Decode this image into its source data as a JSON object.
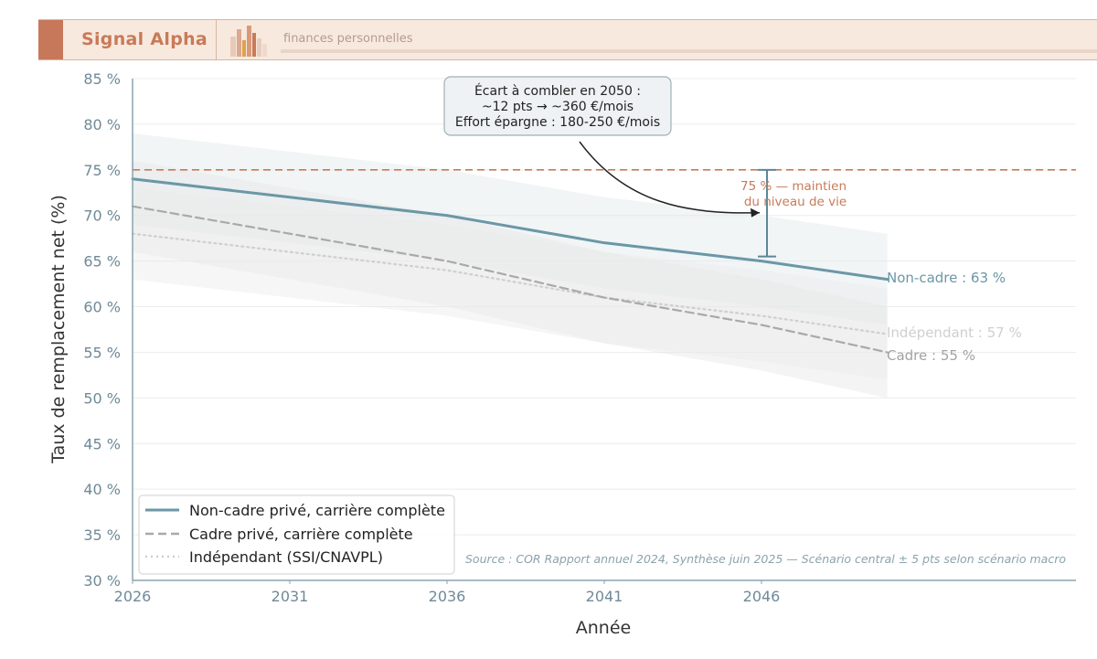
{
  "header": {
    "brand": "Signal Alpha",
    "tagline": "finances personnelles"
  },
  "colors": {
    "noncadre": "#6b97a6",
    "cadre": "#a9a9a9",
    "independant": "#cfcfcf",
    "target": "#c97a57",
    "header_bg": "#f8e9df"
  },
  "chart_data": {
    "type": "line",
    "xlabel": "Année",
    "ylabel": "Taux de remplacement net (%)",
    "xlim": [
      2026,
      2056
    ],
    "ylim": [
      30,
      85
    ],
    "x_ticks": [
      2026,
      2031,
      2036,
      2041,
      2046
    ],
    "x_tick_labels": [
      "2026",
      "2031",
      "2036",
      "2041",
      "2046"
    ],
    "y_ticks": [
      30,
      35,
      40,
      45,
      50,
      55,
      60,
      65,
      70,
      75,
      80,
      85
    ],
    "y_tick_labels": [
      "30 %",
      "35 %",
      "40 %",
      "45 %",
      "50 %",
      "55 %",
      "60 %",
      "65 %",
      "70 %",
      "75 %",
      "80 %",
      "85 %"
    ],
    "grid": "horizontal",
    "legend_position": "bottom-left",
    "series": [
      {
        "name": "Non-cadre privé, carrière complète",
        "end_label": "Non-cadre : 63 %",
        "style": "solid",
        "color": "#6b97a6",
        "x": [
          2026,
          2031,
          2036,
          2041,
          2046,
          2050
        ],
        "y": [
          74,
          72,
          70,
          67,
          65,
          63
        ],
        "band_low": [
          69,
          67,
          65,
          62,
          60,
          58
        ],
        "band_high": [
          79,
          77,
          75,
          72,
          70,
          68
        ]
      },
      {
        "name": "Cadre privé, carrière complète",
        "end_label": "Cadre : 55 %",
        "style": "dashed",
        "color": "#a9a9a9",
        "x": [
          2026,
          2031,
          2036,
          2041,
          2046,
          2050
        ],
        "y": [
          71,
          68,
          65,
          61,
          58,
          55
        ],
        "band_low": [
          66,
          63,
          60,
          56,
          53,
          50
        ],
        "band_high": [
          76,
          73,
          70,
          66,
          63,
          60
        ]
      },
      {
        "name": "Indépendant (SSI/CNAVPL)",
        "end_label": "Indépendant : 57 %",
        "style": "dotted",
        "color": "#cfcfcf",
        "x": [
          2026,
          2031,
          2036,
          2041,
          2046,
          2050
        ],
        "y": [
          68,
          66,
          64,
          61,
          59,
          57
        ],
        "band_low": [
          63,
          61,
          59,
          56,
          54,
          52
        ],
        "band_high": [
          73,
          71,
          69,
          66,
          64,
          62
        ]
      }
    ],
    "reference_line": {
      "y": 75,
      "label_line1": "75 % — maintien",
      "label_line2": "du niveau de vie"
    },
    "gap_bracket": {
      "x": 2046,
      "y_low": 65.5,
      "y_high": 75
    },
    "annotation": {
      "line1": "Écart à combler en 2050 :",
      "line2": "~12 pts → ~360 €/mois",
      "line3": "Effort épargne : 180-250 €/mois",
      "points_to": {
        "x": 2046,
        "y": 70.3
      }
    },
    "source": "Source : COR Rapport annuel 2024, Synthèse juin 2025 — Scénario central ± 5 pts selon scénario macro"
  }
}
